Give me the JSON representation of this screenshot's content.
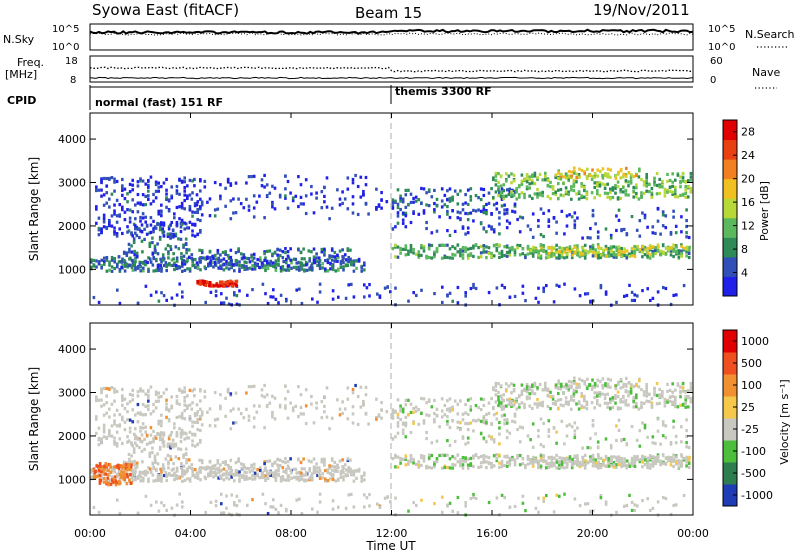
{
  "header": {
    "station": "Syowa East (fitACF)",
    "beam": "Beam 15",
    "date": "19/Nov/2011"
  },
  "panels": {
    "nsky": {
      "label": "N.Sky",
      "ticks": [
        "10^5",
        "10^0"
      ],
      "right_label": "N.Search",
      "right_ticks": [
        "10^5",
        "10^0"
      ]
    },
    "freq": {
      "label_line1": "Freq.",
      "label_line2": "[MHz]",
      "ticks": [
        "18",
        "8"
      ],
      "right_label": "Nave",
      "right_ticks": [
        "60",
        "0"
      ]
    },
    "cpid": {
      "label": "CPID",
      "modes": [
        "normal (fast) 151 RF",
        "themis 3300 RF"
      ]
    }
  },
  "colors": {
    "power_scale": [
      "#2020e8",
      "#3050b8",
      "#2e8b57",
      "#5cb85c",
      "#b8d838",
      "#f0c020",
      "#f08020",
      "#e84010",
      "#e00000"
    ],
    "velocity_scale": [
      "#1e3cb4",
      "#2e7d4e",
      "#4cbe3c",
      "#c8c8c0",
      "#f5c84c",
      "#f09030",
      "#f05020",
      "#e00000"
    ]
  },
  "chart_data": [
    {
      "type": "heatmap",
      "name": "power",
      "ylabel": "Slant Range [km]",
      "yticks": [
        "1000",
        "2000",
        "3000",
        "4000"
      ],
      "ylim": [
        180,
        4600
      ],
      "xlim": [
        0,
        24
      ],
      "xticks": [
        "00:00",
        "04:00",
        "08:00",
        "12:00",
        "16:00",
        "20:00",
        "00:00"
      ],
      "colorbar_label": "Power [dB]",
      "colorbar_ticks": [
        "4",
        "8",
        "12",
        "16",
        "20",
        "24",
        "28"
      ],
      "colorbar_range": [
        0,
        30
      ]
    },
    {
      "type": "heatmap",
      "name": "velocity",
      "ylabel": "Slant Range [km]",
      "yticks": [
        "1000",
        "2000",
        "3000",
        "4000"
      ],
      "ylim": [
        180,
        4600
      ],
      "xlim": [
        0,
        24
      ],
      "xticks": [
        "00:00",
        "04:00",
        "08:00",
        "12:00",
        "16:00",
        "20:00",
        "00:00"
      ],
      "xlabel": "Time UT",
      "colorbar_label": "Velocity [m s⁻¹]",
      "colorbar_ticks": [
        "1000",
        "500",
        "100",
        "25",
        "-25",
        "-100",
        "-500",
        "-1000"
      ]
    }
  ]
}
